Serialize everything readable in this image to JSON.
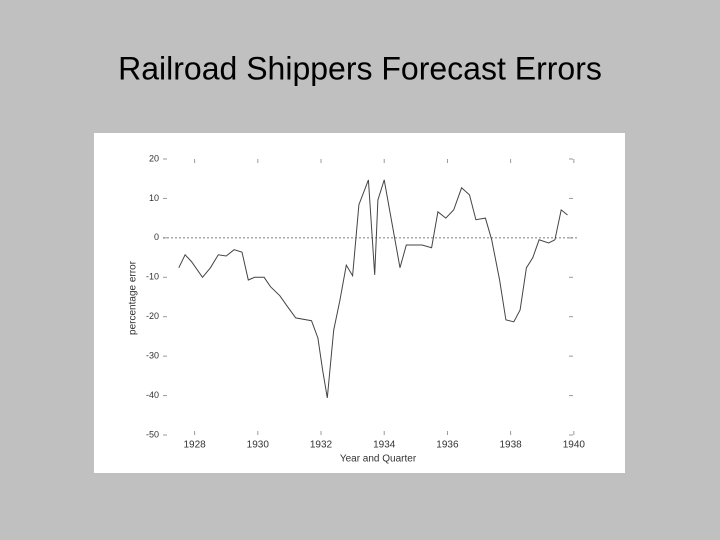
{
  "chart_data": {
    "type": "line",
    "title": "Railroad Shippers Forecast Errors",
    "xlabel": "Year and Quarter",
    "ylabel": "percentage error",
    "x": [
      1927.5,
      1927.7,
      1927.9,
      1928.25,
      1928.5,
      1928.75,
      1929.0,
      1929.25,
      1929.5,
      1929.7,
      1929.9,
      1930.2,
      1930.4,
      1930.7,
      1930.9,
      1931.2,
      1931.7,
      1931.9,
      1932.05,
      1932.2,
      1932.4,
      1932.6,
      1932.8,
      1933.0,
      1933.2,
      1933.5,
      1933.7,
      1933.8,
      1934.0,
      1934.2,
      1934.5,
      1934.7,
      1934.95,
      1935.2,
      1935.5,
      1935.7,
      1935.95,
      1936.2,
      1936.45,
      1936.7,
      1936.9,
      1937.2,
      1937.4,
      1937.65,
      1937.85,
      1938.1,
      1938.3,
      1938.5,
      1938.7,
      1938.9,
      1939.2,
      1939.4,
      1939.6,
      1939.8
    ],
    "series": [
      {
        "color": "#444444",
        "values": [
          -7.6,
          -4.3,
          -6.0,
          -10.0,
          -7.6,
          -4.3,
          -4.6,
          -3.0,
          -3.6,
          -10.7,
          -10.0,
          -10.0,
          -12.4,
          -14.7,
          -17.0,
          -20.3,
          -21.0,
          -25.4,
          -33.5,
          -40.6,
          -23.4,
          -15.7,
          -6.9,
          -9.6,
          8.4,
          14.7,
          -9.4,
          9.6,
          14.7,
          5.8,
          -7.6,
          -1.8,
          -1.8,
          -1.8,
          -2.5,
          6.6,
          5.0,
          7.1,
          12.7,
          10.9,
          4.6,
          5.0,
          -0.5,
          -10.7,
          -20.8,
          -21.3,
          -18.3,
          -7.6,
          -5.0,
          -0.5,
          -1.3,
          -0.5,
          7.1,
          5.8
        ]
      }
    ],
    "xlim": [
      1927,
      1940.1
    ],
    "xticks": [
      1928,
      1930,
      1932,
      1934,
      1936,
      1938,
      1940
    ],
    "ylim": [
      -50,
      20
    ],
    "yticks": [
      -50,
      -40,
      -30,
      -20,
      -10,
      0,
      10,
      20
    ],
    "reference_line": 0
  }
}
